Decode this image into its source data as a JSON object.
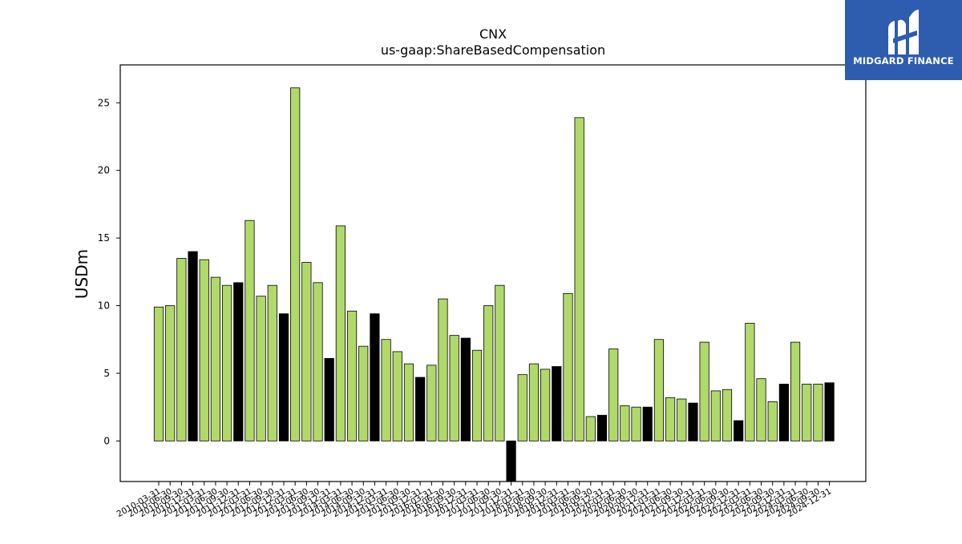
{
  "colors": {
    "bar_default": "#b0d96a",
    "bar_highlight": "#000000",
    "bar_edge": "#000000",
    "logo_bg": "#2e5cae",
    "logo_fg": "#ffffff"
  },
  "logo": {
    "text": "MIDGARD FINANCE",
    "icon": "midgard-logo-icon"
  },
  "chart_data": {
    "type": "bar",
    "title": "CNX",
    "subtitle": "us-gaap:ShareBasedCompensation",
    "xlabel": "",
    "ylabel": "USDm",
    "ylim": [
      -3,
      27.8
    ],
    "yticks": [
      0,
      5,
      10,
      15,
      20,
      25
    ],
    "grid": false,
    "legend": "none",
    "categories": [
      "2010-03-31",
      "2010-06-30",
      "2010-09-30",
      "2010-12-31",
      "2011-03-31",
      "2011-06-30",
      "2011-09-30",
      "2011-12-31",
      "2012-03-31",
      "2012-06-30",
      "2012-09-30",
      "2012-12-31",
      "2013-03-31",
      "2013-06-30",
      "2013-09-30",
      "2013-12-31",
      "2014-03-31",
      "2014-06-30",
      "2014-09-30",
      "2014-12-31",
      "2015-03-31",
      "2015-06-30",
      "2015-09-30",
      "2015-12-31",
      "2016-03-31",
      "2016-06-30",
      "2016-09-30",
      "2016-12-31",
      "2017-03-31",
      "2017-06-30",
      "2017-09-30",
      "2017-12-31",
      "2018-03-31",
      "2018-06-30",
      "2018-09-30",
      "2018-12-31",
      "2019-03-31",
      "2019-06-30",
      "2019-09-30",
      "2019-12-31",
      "2020-03-31",
      "2020-06-30",
      "2020-09-30",
      "2020-12-31",
      "2021-03-31",
      "2021-06-30",
      "2021-09-30",
      "2021-12-31",
      "2022-03-31",
      "2022-06-30",
      "2022-09-30",
      "2022-12-31",
      "2023-03-31",
      "2023-06-30",
      "2023-09-30",
      "2023-12-31",
      "2024-03-31",
      "2024-06-30",
      "2024-09-30",
      "2024-12-31"
    ],
    "values": [
      9.9,
      10.0,
      13.5,
      14.0,
      13.4,
      12.1,
      11.5,
      11.7,
      16.3,
      10.7,
      11.5,
      9.4,
      26.1,
      13.2,
      11.7,
      6.1,
      15.9,
      9.6,
      7.0,
      9.4,
      7.5,
      6.6,
      5.7,
      4.7,
      5.6,
      10.5,
      7.8,
      7.6,
      6.7,
      10.0,
      11.5,
      -3.0,
      4.9,
      5.7,
      5.3,
      5.5,
      10.9,
      23.9,
      1.8,
      1.9,
      6.8,
      2.6,
      2.5,
      2.5,
      7.5,
      3.2,
      3.1,
      2.8,
      7.3,
      3.7,
      3.8,
      1.5,
      8.7,
      4.6,
      2.9,
      4.2,
      7.3,
      4.2,
      4.2,
      4.3
    ],
    "highlight_indices": [
      3,
      7,
      11,
      15,
      19,
      23,
      27,
      31,
      35,
      39,
      43,
      47,
      51,
      55,
      59
    ]
  }
}
